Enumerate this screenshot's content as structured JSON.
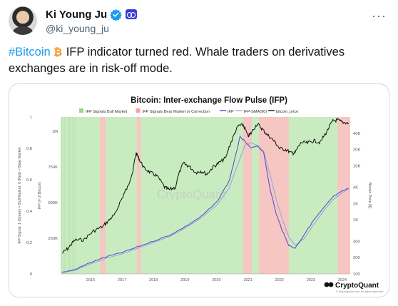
{
  "tweet": {
    "display_name": "Ki Young Ju",
    "handle": "@ki_young_ju",
    "more_label": "···",
    "hashtag": "#Bitcoin",
    "text": "IFP indicator turned red. Whale traders on derivatives exchanges are in risk-off mode.",
    "verified_color": "#1d9bf0",
    "affiliate_color": "#3b3ad9"
  },
  "chart_data": {
    "type": "line",
    "title": "Bitcoin: Inter-exchange Flow Pulse (IFP)",
    "legend": [
      {
        "label": "IFP Signals Bull Market",
        "color": "#9ad68a",
        "kind": "patch"
      },
      {
        "label": "IFP Signals Bear Market or Correction",
        "color": "#f2a3a3",
        "kind": "patch"
      },
      {
        "label": "IFP",
        "color": "#4a4acb",
        "kind": "line"
      },
      {
        "label": "IFP-SMA(90)",
        "color": "#9aa8d8",
        "kind": "line"
      },
      {
        "label": "bitcoin_price",
        "color": "#111111",
        "kind": "line"
      }
    ],
    "legend_position": "top",
    "y_left_outer_label": "IFP Signal: 1 (Green) = Bull Market, 0 (Red) = Bear Market",
    "y_left_outer_ticks": [
      "1",
      "0.8",
      "0.6",
      "0.4",
      "0.2",
      "0"
    ],
    "y_left_inner_label": "IFP (# of Bitcoin)",
    "y_left_inner_ticks": [
      "1M",
      "750K",
      "500K",
      "250K"
    ],
    "y_right_label": "Bitcoin Price ($)",
    "y_right_ticks": [
      "40K",
      "20K",
      "10K",
      "4K",
      "2K",
      "1K",
      "400",
      "200",
      "100"
    ],
    "x_ticks": [
      "2016",
      "2017",
      "2018",
      "2019",
      "2020",
      "2021",
      "2022",
      "2023",
      "2024"
    ],
    "x_range": [
      2015.55,
      2024.75
    ],
    "y_left_range": [
      0,
      1000000
    ],
    "y_right_log_range": [
      100,
      80000
    ],
    "watermark": "CryptoQuant",
    "logo_text": "CryptoQuant",
    "footer_note": "© cryptoquant.com all rights reserved",
    "bg_green": "#c9ebc0",
    "bg_red": "#f6c6c2",
    "regimes": [
      {
        "start": 2015.55,
        "end": 2016.05,
        "signal": 1
      },
      {
        "start": 2016.05,
        "end": 2016.35,
        "signal": 1
      },
      {
        "start": 2016.8,
        "end": 2016.98,
        "signal": 0
      },
      {
        "start": 2017.97,
        "end": 2018.1,
        "signal": 0
      },
      {
        "start": 2021.35,
        "end": 2021.62,
        "signal": 0
      },
      {
        "start": 2021.85,
        "end": 2022.8,
        "signal": 0
      },
      {
        "start": 2024.35,
        "end": 2024.75,
        "signal": 0
      }
    ],
    "price_series": {
      "x": [
        2015.6,
        2015.8,
        2016.0,
        2016.3,
        2016.6,
        2016.9,
        2017.1,
        2017.3,
        2017.5,
        2017.7,
        2017.85,
        2017.95,
        2018.05,
        2018.2,
        2018.4,
        2018.6,
        2018.85,
        2019.0,
        2019.2,
        2019.45,
        2019.6,
        2019.85,
        2020.0,
        2020.2,
        2020.4,
        2020.6,
        2020.8,
        2021.0,
        2021.2,
        2021.35,
        2021.5,
        2021.6,
        2021.8,
        2021.95,
        2022.1,
        2022.3,
        2022.5,
        2022.7,
        2022.9,
        2023.0,
        2023.2,
        2023.4,
        2023.6,
        2023.8,
        2024.0,
        2024.2,
        2024.35,
        2024.5,
        2024.7
      ],
      "y": [
        240,
        300,
        420,
        430,
        620,
        760,
        1000,
        1300,
        2500,
        4200,
        8000,
        17000,
        13000,
        9000,
        7500,
        6500,
        4000,
        3600,
        4000,
        11000,
        10000,
        7500,
        8000,
        7000,
        9500,
        11500,
        14000,
        30000,
        55000,
        57000,
        35000,
        40000,
        60000,
        48000,
        38000,
        30000,
        21000,
        20000,
        17000,
        17500,
        27000,
        26500,
        29000,
        27000,
        42000,
        67000,
        70000,
        64000,
        62000
      ]
    },
    "ifp_series": {
      "x": [
        2015.6,
        2016.0,
        2016.5,
        2017.0,
        2017.5,
        2018.0,
        2018.5,
        2019.0,
        2019.5,
        2020.0,
        2020.5,
        2020.9,
        2021.1,
        2021.25,
        2021.4,
        2021.6,
        2021.8,
        2022.0,
        2022.2,
        2022.4,
        2022.6,
        2022.8,
        2023.0,
        2023.3,
        2023.6,
        2023.9,
        2024.2,
        2024.5,
        2024.7
      ],
      "y": [
        10000,
        30000,
        80000,
        120000,
        150000,
        190000,
        230000,
        270000,
        330000,
        400000,
        500000,
        650000,
        820000,
        960000,
        930000,
        880000,
        900000,
        850000,
        600000,
        420000,
        300000,
        200000,
        180000,
        280000,
        380000,
        460000,
        540000,
        580000,
        600000
      ]
    },
    "sma_series": {
      "x": [
        2015.6,
        2016.0,
        2016.5,
        2017.0,
        2017.5,
        2018.0,
        2018.5,
        2019.0,
        2019.5,
        2020.0,
        2020.5,
        2020.9,
        2021.2,
        2021.4,
        2021.6,
        2021.8,
        2022.0,
        2022.2,
        2022.4,
        2022.6,
        2022.8,
        2023.0,
        2023.3,
        2023.6,
        2023.9,
        2024.2,
        2024.5,
        2024.7
      ],
      "y": [
        10000,
        25000,
        70000,
        110000,
        140000,
        180000,
        220000,
        260000,
        320000,
        390000,
        480000,
        600000,
        780000,
        900000,
        920000,
        900000,
        860000,
        700000,
        520000,
        380000,
        260000,
        200000,
        250000,
        350000,
        440000,
        520000,
        570000,
        595000
      ]
    }
  }
}
